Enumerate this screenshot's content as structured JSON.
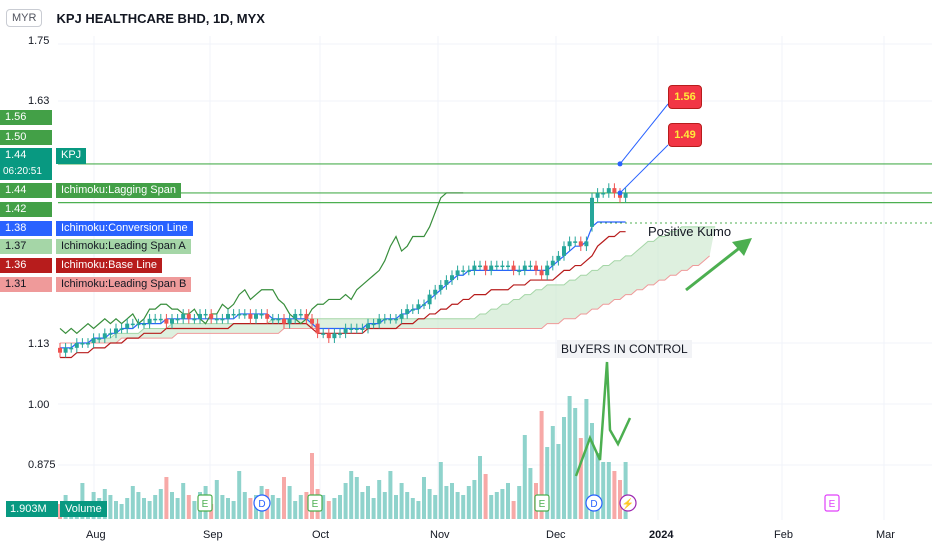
{
  "header": {
    "currency": "MYR",
    "title": "KPJ HEALTHCARE BHD, 1D, MYX"
  },
  "colors": {
    "up": "#26a69a",
    "down": "#ef5350",
    "lagging": "#388e3c",
    "conversion": "#2962ff",
    "base": "#b71c1c",
    "kumo_fill": "#c8e6c9",
    "span_a": "#a5d6a7",
    "span_b": "#ef9a9a",
    "resistance": "#4caf50",
    "arrow": "#4caf50"
  },
  "y_axis_ticks": [
    "1.75",
    "1.63",
    "1.13",
    "1.00",
    "0.875"
  ],
  "x_axis_ticks": [
    "Aug",
    "Sep",
    "Oct",
    "Nov",
    "Dec",
    "2024",
    "Feb",
    "Mar"
  ],
  "price_tags": [
    {
      "value": "1.56",
      "label": ""
    },
    {
      "value": "1.50",
      "label": ""
    },
    {
      "value": "1.44",
      "label": "KPJ",
      "sub": "06:20:51"
    },
    {
      "value": "1.44",
      "label": "Ichimoku:Lagging Span"
    },
    {
      "value": "1.42",
      "label": ""
    },
    {
      "value": "1.38",
      "label": "Ichimoku:Conversion Line"
    },
    {
      "value": "1.37",
      "label": "Ichimoku:Leading Span A"
    },
    {
      "value": "1.36",
      "label": "Ichimoku:Base Line"
    },
    {
      "value": "1.31",
      "label": "Ichimoku:Leading Span B"
    }
  ],
  "volume": {
    "value": "1.903M",
    "label": "Volume"
  },
  "annotations": {
    "target_1": "1.56",
    "target_2": "1.49",
    "kumo_note": "Positive Kumo",
    "buyers_note": "BUYERS IN CONTROL"
  },
  "event_markers": [
    "E",
    "D",
    "E",
    "D",
    "E",
    "D",
    "E"
  ],
  "chart_data": {
    "type": "candlestick",
    "title": "KPJ HEALTHCARE BHD, 1D, MYX",
    "x_range": [
      "2023-07-27",
      "2024-03-05"
    ],
    "ylim": [
      0.8,
      1.78
    ],
    "resistance_levels": [
      1.5,
      1.44,
      1.42
    ],
    "close": [
      1.11,
      1.12,
      1.12,
      1.13,
      1.13,
      1.13,
      1.14,
      1.14,
      1.15,
      1.15,
      1.16,
      1.16,
      1.17,
      1.17,
      1.17,
      1.17,
      1.18,
      1.18,
      1.18,
      1.17,
      1.18,
      1.18,
      1.19,
      1.18,
      1.18,
      1.19,
      1.19,
      1.18,
      1.18,
      1.18,
      1.19,
      1.19,
      1.19,
      1.19,
      1.18,
      1.19,
      1.19,
      1.18,
      1.18,
      1.18,
      1.17,
      1.18,
      1.19,
      1.19,
      1.18,
      1.17,
      1.15,
      1.15,
      1.14,
      1.15,
      1.15,
      1.16,
      1.16,
      1.16,
      1.16,
      1.17,
      1.17,
      1.18,
      1.18,
      1.18,
      1.18,
      1.19,
      1.2,
      1.2,
      1.21,
      1.21,
      1.23,
      1.24,
      1.25,
      1.26,
      1.27,
      1.28,
      1.28,
      1.28,
      1.29,
      1.29,
      1.28,
      1.29,
      1.29,
      1.29,
      1.29,
      1.28,
      1.28,
      1.29,
      1.29,
      1.28,
      1.27,
      1.29,
      1.3,
      1.31,
      1.33,
      1.34,
      1.34,
      1.33,
      1.34,
      1.43,
      1.44,
      1.44,
      1.45,
      1.44,
      1.43,
      1.44
    ],
    "open": [
      1.12,
      1.11,
      1.12,
      1.12,
      1.13,
      1.13,
      1.13,
      1.14,
      1.14,
      1.15,
      1.15,
      1.16,
      1.16,
      1.17,
      1.17,
      1.17,
      1.17,
      1.18,
      1.18,
      1.18,
      1.17,
      1.18,
      1.18,
      1.19,
      1.18,
      1.18,
      1.19,
      1.19,
      1.18,
      1.18,
      1.18,
      1.19,
      1.19,
      1.19,
      1.19,
      1.18,
      1.19,
      1.19,
      1.18,
      1.18,
      1.18,
      1.17,
      1.18,
      1.19,
      1.19,
      1.18,
      1.17,
      1.15,
      1.15,
      1.14,
      1.15,
      1.15,
      1.16,
      1.16,
      1.16,
      1.16,
      1.17,
      1.17,
      1.18,
      1.18,
      1.18,
      1.18,
      1.19,
      1.2,
      1.2,
      1.21,
      1.21,
      1.23,
      1.24,
      1.25,
      1.26,
      1.27,
      1.28,
      1.28,
      1.28,
      1.29,
      1.29,
      1.28,
      1.29,
      1.29,
      1.29,
      1.29,
      1.28,
      1.28,
      1.29,
      1.29,
      1.28,
      1.27,
      1.29,
      1.3,
      1.31,
      1.33,
      1.34,
      1.34,
      1.33,
      1.37,
      1.43,
      1.44,
      1.44,
      1.45,
      1.44,
      1.43
    ],
    "conversion": [
      1.12,
      1.12,
      1.12,
      1.13,
      1.13,
      1.13,
      1.14,
      1.14,
      1.14,
      1.15,
      1.15,
      1.16,
      1.16,
      1.16,
      1.17,
      1.17,
      1.17,
      1.17,
      1.17,
      1.18,
      1.18,
      1.18,
      1.18,
      1.18,
      1.18,
      1.18,
      1.18,
      1.18,
      1.18,
      1.18,
      1.18,
      1.18,
      1.19,
      1.19,
      1.19,
      1.19,
      1.19,
      1.19,
      1.18,
      1.18,
      1.18,
      1.18,
      1.18,
      1.18,
      1.18,
      1.17,
      1.16,
      1.16,
      1.16,
      1.16,
      1.16,
      1.16,
      1.16,
      1.16,
      1.16,
      1.17,
      1.17,
      1.17,
      1.18,
      1.18,
      1.18,
      1.19,
      1.19,
      1.2,
      1.2,
      1.21,
      1.22,
      1.23,
      1.24,
      1.25,
      1.26,
      1.27,
      1.27,
      1.28,
      1.28,
      1.28,
      1.28,
      1.28,
      1.28,
      1.28,
      1.28,
      1.28,
      1.28,
      1.28,
      1.28,
      1.28,
      1.28,
      1.28,
      1.29,
      1.3,
      1.31,
      1.32,
      1.33,
      1.33,
      1.34,
      1.37,
      1.38,
      1.38,
      1.38,
      1.38,
      1.38,
      1.38
    ],
    "base": [
      1.1,
      1.1,
      1.1,
      1.11,
      1.11,
      1.11,
      1.12,
      1.12,
      1.12,
      1.13,
      1.13,
      1.13,
      1.14,
      1.14,
      1.14,
      1.15,
      1.15,
      1.15,
      1.15,
      1.16,
      1.16,
      1.16,
      1.16,
      1.16,
      1.16,
      1.16,
      1.16,
      1.16,
      1.16,
      1.16,
      1.16,
      1.17,
      1.17,
      1.17,
      1.17,
      1.17,
      1.17,
      1.17,
      1.17,
      1.17,
      1.17,
      1.17,
      1.17,
      1.17,
      1.17,
      1.16,
      1.15,
      1.15,
      1.15,
      1.15,
      1.15,
      1.15,
      1.15,
      1.15,
      1.15,
      1.16,
      1.16,
      1.16,
      1.16,
      1.16,
      1.16,
      1.17,
      1.17,
      1.17,
      1.18,
      1.18,
      1.19,
      1.19,
      1.2,
      1.2,
      1.21,
      1.21,
      1.22,
      1.22,
      1.23,
      1.23,
      1.23,
      1.24,
      1.24,
      1.24,
      1.24,
      1.25,
      1.25,
      1.25,
      1.26,
      1.26,
      1.26,
      1.26,
      1.26,
      1.27,
      1.28,
      1.28,
      1.29,
      1.29,
      1.3,
      1.31,
      1.33,
      1.34,
      1.35,
      1.35,
      1.36,
      1.36
    ],
    "lagging": [
      1.16,
      1.15,
      1.16,
      1.15,
      1.16,
      1.17,
      1.16,
      1.17,
      1.18,
      1.17,
      1.18,
      1.17,
      1.18,
      1.19,
      1.17,
      1.18,
      1.2,
      1.2,
      1.21,
      1.21,
      1.2,
      1.2,
      1.19,
      1.19,
      1.2,
      1.18,
      1.17,
      1.19,
      1.19,
      1.21,
      1.2,
      1.21,
      1.23,
      1.24,
      1.22,
      1.23,
      1.24,
      1.24,
      1.24,
      1.22,
      1.21,
      1.19,
      1.18,
      1.17,
      1.18,
      1.2,
      1.21,
      1.21,
      1.22,
      1.22,
      1.22,
      1.23,
      1.22,
      1.24,
      1.25,
      1.26,
      1.27,
      1.28,
      1.3,
      1.33,
      1.35,
      1.32,
      1.33,
      1.35,
      1.35,
      1.35,
      1.37,
      1.4,
      1.43,
      1.44,
      1.44,
      1.44,
      1.44
    ],
    "span_a": [
      1.13,
      1.13,
      1.13,
      1.13,
      1.13,
      1.13,
      1.14,
      1.14,
      1.14,
      1.14,
      1.15,
      1.15,
      1.15,
      1.15,
      1.15,
      1.16,
      1.16,
      1.16,
      1.16,
      1.16,
      1.17,
      1.17,
      1.17,
      1.17,
      1.17,
      1.17,
      1.17,
      1.17,
      1.17,
      1.17,
      1.17,
      1.17,
      1.17,
      1.17,
      1.17,
      1.17,
      1.17,
      1.17,
      1.18,
      1.18,
      1.18,
      1.18,
      1.18,
      1.18,
      1.18,
      1.18,
      1.18,
      1.18,
      1.18,
      1.18,
      1.18,
      1.18,
      1.18,
      1.18,
      1.18,
      1.18,
      1.18,
      1.18,
      1.18,
      1.18,
      1.18,
      1.18,
      1.18,
      1.18,
      1.18,
      1.18,
      1.18,
      1.18,
      1.18,
      1.18,
      1.18,
      1.18,
      1.18,
      1.18,
      1.18,
      1.19,
      1.19,
      1.2,
      1.2,
      1.21,
      1.21,
      1.22,
      1.22,
      1.23,
      1.23,
      1.24,
      1.24,
      1.25,
      1.25,
      1.25,
      1.25,
      1.26,
      1.26,
      1.27,
      1.27,
      1.28,
      1.28,
      1.29,
      1.29,
      1.3,
      1.3,
      1.31,
      1.31,
      1.32,
      1.33,
      1.34,
      1.34,
      1.35,
      1.35,
      1.36,
      1.36,
      1.37,
      1.37,
      1.37,
      1.37,
      1.37,
      1.37,
      1.37
    ],
    "span_b": [
      1.13,
      1.13,
      1.13,
      1.13,
      1.13,
      1.13,
      1.13,
      1.13,
      1.13,
      1.13,
      1.13,
      1.14,
      1.14,
      1.14,
      1.14,
      1.14,
      1.14,
      1.14,
      1.14,
      1.14,
      1.14,
      1.15,
      1.15,
      1.15,
      1.15,
      1.15,
      1.15,
      1.15,
      1.15,
      1.15,
      1.15,
      1.15,
      1.15,
      1.15,
      1.15,
      1.15,
      1.15,
      1.15,
      1.15,
      1.15,
      1.16,
      1.16,
      1.16,
      1.16,
      1.16,
      1.16,
      1.16,
      1.16,
      1.16,
      1.16,
      1.16,
      1.16,
      1.16,
      1.16,
      1.16,
      1.16,
      1.16,
      1.16,
      1.16,
      1.16,
      1.16,
      1.16,
      1.16,
      1.16,
      1.16,
      1.16,
      1.16,
      1.16,
      1.16,
      1.16,
      1.16,
      1.16,
      1.16,
      1.16,
      1.16,
      1.16,
      1.16,
      1.16,
      1.16,
      1.16,
      1.16,
      1.16,
      1.16,
      1.16,
      1.16,
      1.16,
      1.16,
      1.17,
      1.17,
      1.17,
      1.18,
      1.18,
      1.18,
      1.19,
      1.19,
      1.2,
      1.2,
      1.21,
      1.21,
      1.22,
      1.22,
      1.23,
      1.23,
      1.24,
      1.24,
      1.25,
      1.25,
      1.26,
      1.26,
      1.27,
      1.27,
      1.28,
      1.28,
      1.29,
      1.29,
      1.3,
      1.31
    ],
    "volume_millions": [
      0.5,
      0.8,
      0.6,
      0.4,
      1.2,
      0.6,
      0.9,
      0.7,
      1.0,
      0.8,
      0.6,
      0.5,
      0.7,
      1.1,
      0.9,
      0.7,
      0.6,
      0.8,
      1.0,
      1.4,
      0.9,
      0.7,
      1.2,
      0.8,
      0.6,
      0.9,
      1.1,
      0.5,
      1.3,
      0.8,
      0.7,
      0.6,
      1.6,
      0.9,
      0.7,
      0.8,
      1.1,
      1.0,
      0.8,
      0.7,
      1.4,
      1.1,
      0.6,
      0.8,
      0.9,
      2.2,
      1.0,
      0.8,
      0.6,
      0.7,
      0.8,
      1.2,
      1.6,
      1.4,
      0.9,
      1.1,
      0.7,
      1.3,
      0.9,
      1.6,
      0.8,
      1.2,
      0.9,
      0.7,
      0.6,
      1.4,
      1.0,
      0.8,
      1.9,
      1.1,
      1.2,
      0.9,
      0.8,
      1.1,
      1.3,
      2.1,
      1.5,
      0.8,
      0.9,
      1.0,
      1.2,
      0.6,
      1.1,
      2.8,
      1.7,
      1.2,
      3.6,
      2.4,
      3.1,
      2.5,
      3.4,
      4.1,
      3.7,
      2.7,
      4.0,
      3.2,
      2.2,
      1.9,
      1.9,
      1.6,
      1.3,
      1.9
    ],
    "ylabel": "",
    "xlabel": ""
  }
}
